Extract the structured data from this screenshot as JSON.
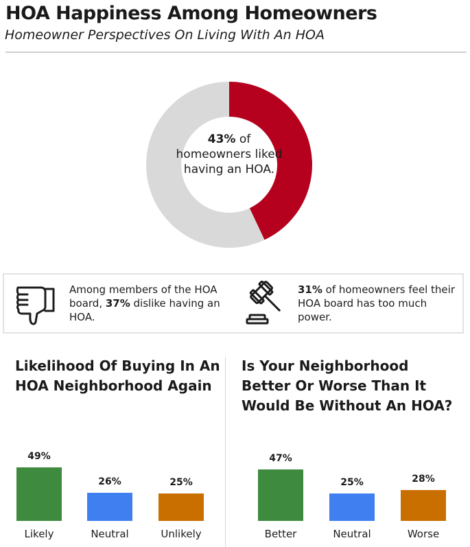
{
  "header": {
    "title": "HOA Happiness Among Homeowners",
    "subtitle": "Homeowner Perspectives On Living With An HOA"
  },
  "colors": {
    "accent_red": "#b5001e",
    "donut_gray": "#d9d9d9",
    "green": "#3e8a3e",
    "blue": "#3f7ff0",
    "orange": "#c96f00"
  },
  "stats": {
    "left": {
      "icon": "thumbs-down-icon",
      "pre": "Among members of the HOA board, ",
      "bold": "37%",
      "post": " dislike having an HOA."
    },
    "right": {
      "icon": "gavel-icon",
      "bold": "31%",
      "post": " of homeowners feel their HOA board has too much power."
    }
  },
  "chart_data": [
    {
      "type": "pie",
      "variant": "donut",
      "values": [
        43,
        57
      ],
      "center_text": {
        "bold": "43%",
        "rest": "of homeowners liked having an HOA."
      }
    },
    {
      "type": "bar",
      "title": "Likelihood Of Buying In An HOA Neighborhood Again",
      "categories": [
        "Likely",
        "Neutral",
        "Unlikely"
      ],
      "values": [
        49,
        26,
        25
      ],
      "labels": [
        "49%",
        "26%",
        "25%"
      ],
      "colors": [
        "#3e8a3e",
        "#3f7ff0",
        "#c96f00"
      ]
    },
    {
      "type": "bar",
      "title": "Is Your Neighborhood Better Or Worse Than It Would Be Without An HOA?",
      "categories": [
        "Better",
        "Neutral",
        "Worse"
      ],
      "values": [
        47,
        25,
        28
      ],
      "labels": [
        "47%",
        "25%",
        "28%"
      ],
      "colors": [
        "#3e8a3e",
        "#3f7ff0",
        "#c96f00"
      ]
    }
  ]
}
